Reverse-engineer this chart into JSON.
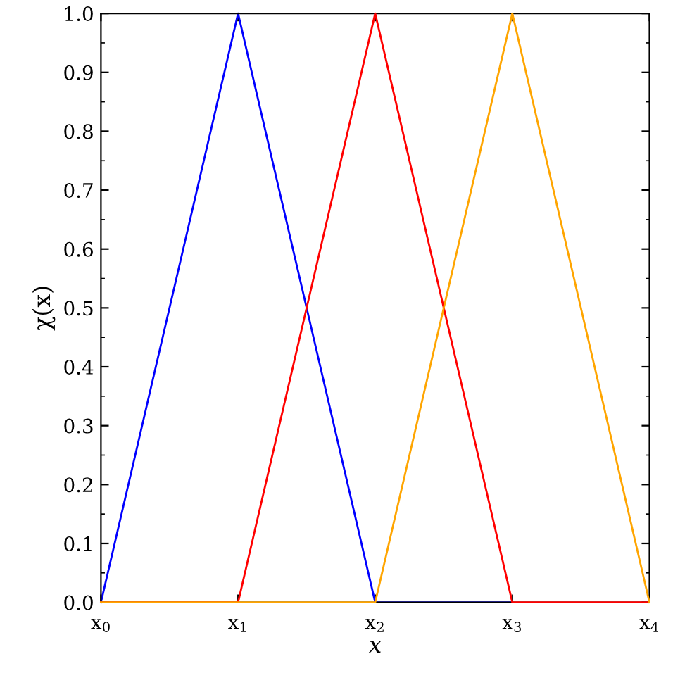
{
  "chart_data": {
    "type": "line",
    "xlabel": "x",
    "ylabel": "χ(x)",
    "series": [
      {
        "color": "#0000ff",
        "x": [
          0,
          1,
          2,
          3
        ],
        "values": [
          0,
          1,
          0,
          0
        ]
      },
      {
        "color": "#ff0000",
        "x": [
          0,
          1,
          2,
          3,
          4
        ],
        "values": [
          0,
          0,
          1,
          0,
          0
        ]
      },
      {
        "color": "#ffa500",
        "x": [
          0,
          1,
          2,
          3,
          4
        ],
        "values": [
          0,
          0,
          0,
          1,
          0
        ]
      }
    ],
    "xlim": [
      0,
      4
    ],
    "ylim": [
      0,
      1
    ],
    "xticks": [
      {
        "value": 0,
        "label": "x$_{0}$"
      },
      {
        "value": 1,
        "label": "x$_{1}$"
      },
      {
        "value": 2,
        "label": "x$_{2}$"
      },
      {
        "value": 3,
        "label": "x$_{3}$"
      },
      {
        "value": 4,
        "label": "x$_{4}$"
      }
    ],
    "yticks": [
      {
        "value": 0,
        "label": "0.0"
      },
      {
        "value": 0.1,
        "label": "0.1"
      },
      {
        "value": 0.2,
        "label": "0.2"
      },
      {
        "value": 0.3,
        "label": "0.3"
      },
      {
        "value": 0.4,
        "label": "0.4"
      },
      {
        "value": 0.5,
        "label": "0.5"
      },
      {
        "value": 0.6,
        "label": "0.6"
      },
      {
        "value": 0.7,
        "label": "0.7"
      },
      {
        "value": 0.8,
        "label": "0.8"
      },
      {
        "value": 0.9,
        "label": "0.9"
      },
      {
        "value": 1,
        "label": "1.0"
      }
    ],
    "grid": false,
    "legend": false,
    "marker": "none",
    "line_style": "solid"
  }
}
